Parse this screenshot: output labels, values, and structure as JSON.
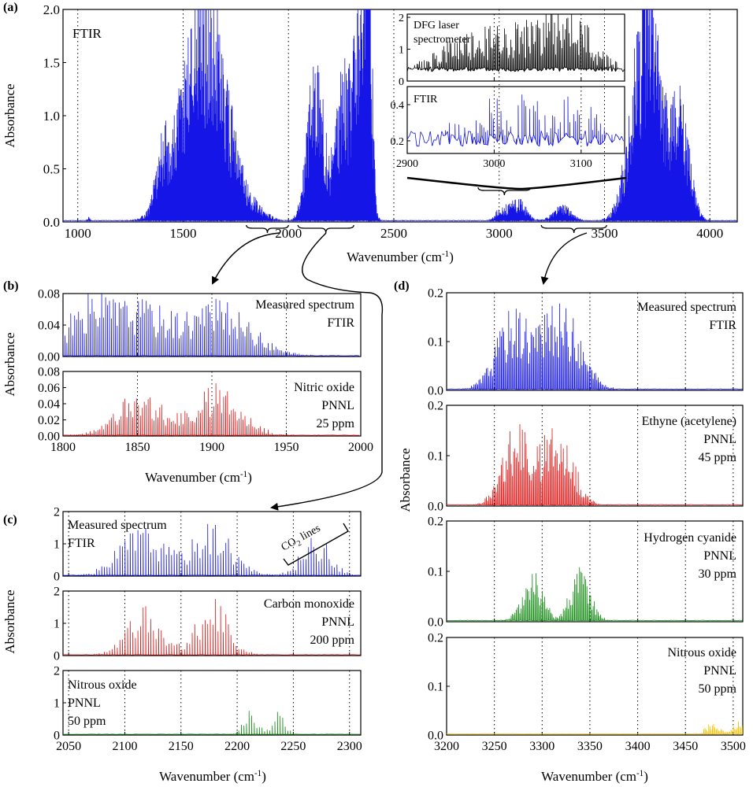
{
  "colors": {
    "blue": "#1515e8",
    "red": "#e01414",
    "green": "#128a12",
    "yellow": "#f2c200",
    "black": "#000000"
  },
  "chart_data": [
    {
      "id": "a",
      "type": "line",
      "panel_label": "(a)",
      "annotation": "FTIR",
      "xlabel": "Wavenumber (cm",
      "xlabel_sup": "-1",
      "xlabel_tail": ")",
      "ylabel": "Absorbance",
      "xlim": [
        930,
        4130
      ],
      "ylim": [
        0,
        2
      ],
      "xticks": [
        1000,
        1500,
        2000,
        2500,
        3000,
        3500,
        4000
      ],
      "yticks": [
        0,
        0.5,
        1,
        1.5,
        2
      ],
      "ytick_labels": [
        "0.0",
        "0.5",
        "1.0",
        "1.5",
        "2.0"
      ],
      "series": [
        {
          "name": "FTIR",
          "color": "blue",
          "bands": [
            {
              "c": 1050,
              "w": 10,
              "amp": 0.04
            },
            {
              "c": 1400,
              "w": 40,
              "amp": 0.5
            },
            {
              "c": 1600,
              "w": 150,
              "amp": 2.4
            },
            {
              "c": 1870,
              "w": 60,
              "amp": 0.06
            },
            {
              "c": 2130,
              "w": 55,
              "amp": 1.65
            },
            {
              "c": 2260,
              "w": 50,
              "amp": 1.5
            },
            {
              "c": 2345,
              "w": 40,
              "amp": 3
            },
            {
              "c": 2380,
              "w": 20,
              "amp": 3
            },
            {
              "c": 3010,
              "w": 40,
              "amp": 0.12
            },
            {
              "c": 3090,
              "w": 55,
              "amp": 0.22
            },
            {
              "c": 3300,
              "w": 60,
              "amp": 0.16
            },
            {
              "c": 3700,
              "w": 95,
              "amp": 2.4
            },
            {
              "c": 3860,
              "w": 60,
              "amp": 1.2
            }
          ]
        }
      ]
    },
    {
      "id": "inset",
      "type": "line",
      "top": {
        "label": "DFG laser\nspectrometer",
        "ylim": [
          0,
          2.1
        ],
        "yticks": [
          0,
          1,
          2
        ],
        "ytick_labels": [
          "0",
          "1",
          "2"
        ],
        "color": "black"
      },
      "bottom": {
        "label": "FTIR",
        "ylim": [
          0.13,
          0.5
        ],
        "yticks": [
          0.2,
          0.4
        ],
        "ytick_labels": [
          "0.2",
          "0.4"
        ],
        "color": "blue"
      },
      "xlim": [
        2900,
        3150
      ],
      "xticks": [
        2900,
        3000,
        3100
      ],
      "xtick_labels": [
        "2900",
        "3000",
        "3100"
      ]
    },
    {
      "id": "b",
      "type": "line",
      "panel_label": "(b)",
      "xlabel": "Wavenumber (cm",
      "xlabel_sup": "-1",
      "xlabel_tail": ")",
      "ylabel": "Absorbance",
      "xlim": [
        1800,
        2000
      ],
      "xticks": [
        1800,
        1850,
        1900,
        1950,
        2000
      ],
      "subplots": [
        {
          "label": "Measured spectrum\nFTIR",
          "color": "blue",
          "ylim": [
            0,
            0.08
          ],
          "yticks": [
            0,
            0.04,
            0.08
          ],
          "ytick_labels": [
            "0.00",
            "0.04",
            "0.08"
          ],
          "bands": [
            {
              "c": 1850,
              "w": 30,
              "amp": 0.07
            },
            {
              "c": 1905,
              "w": 30,
              "amp": 0.07
            },
            {
              "c": 1815,
              "w": 20,
              "amp": 0.06
            }
          ]
        },
        {
          "label": "Nitric oxide\nPNNL\n25 ppm",
          "color": "red",
          "ylim": [
            0,
            0.08
          ],
          "yticks": [
            0,
            0.02,
            0.04,
            0.06,
            0.08
          ],
          "ytick_labels": [
            "0.00",
            "0.02",
            "0.04",
            "0.06",
            "0.08"
          ],
          "bands": [
            {
              "c": 1852,
              "w": 22,
              "amp": 0.058
            },
            {
              "c": 1905,
              "w": 22,
              "amp": 0.066
            }
          ]
        }
      ]
    },
    {
      "id": "c",
      "type": "line",
      "panel_label": "(c)",
      "xlabel": "Wavenumber (cm",
      "xlabel_sup": "-1",
      "xlabel_tail": ")",
      "ylabel": "Absorbance",
      "xlim": [
        2045,
        2310
      ],
      "xticks": [
        2050,
        2100,
        2150,
        2200,
        2250,
        2300
      ],
      "annotation": {
        "text": "CO",
        "sub": "2",
        "tail": " lines"
      },
      "subplots": [
        {
          "label": "Measured spectrum\nFTIR",
          "color": "blue",
          "ylim": [
            0,
            2
          ],
          "yticks": [
            0,
            1,
            2
          ],
          "ytick_labels": [
            "0",
            "1",
            "2"
          ],
          "bands": [
            {
              "c": 2115,
              "w": 28,
              "amp": 1.6
            },
            {
              "c": 2178,
              "w": 25,
              "amp": 1.75
            },
            {
              "c": 2270,
              "w": 18,
              "amp": 1.3
            }
          ]
        },
        {
          "label": "Carbon monoxide\nPNNL\n200 ppm",
          "color": "red",
          "ylim": [
            0,
            2
          ],
          "yticks": [
            0,
            1,
            2
          ],
          "ytick_labels": [
            "0",
            "1",
            "2"
          ],
          "bands": [
            {
              "c": 2117,
              "w": 22,
              "amp": 1.55
            },
            {
              "c": 2178,
              "w": 20,
              "amp": 1.85
            }
          ]
        },
        {
          "label": "Nitrous oxide\nPNNL\n50 ppm",
          "color": "green",
          "ylim": [
            0,
            2
          ],
          "yticks": [
            0,
            1,
            2
          ],
          "ytick_labels": [
            "0",
            "1",
            "2"
          ],
          "bands": [
            {
              "c": 2212,
              "w": 9,
              "amp": 0.75
            },
            {
              "c": 2238,
              "w": 8,
              "amp": 0.75
            }
          ]
        }
      ]
    },
    {
      "id": "d",
      "type": "line",
      "panel_label": "(d)",
      "xlabel": "Wavenumber (cm",
      "xlabel_sup": "-1",
      "xlabel_tail": ")",
      "ylabel": "Absorbance",
      "xlim": [
        3200,
        3510
      ],
      "xticks": [
        3200,
        3250,
        3300,
        3350,
        3400,
        3450,
        3500
      ],
      "subplots": [
        {
          "label": "Measured spectrum\nFTIR",
          "color": "blue",
          "ylim": [
            0,
            0.2
          ],
          "yticks": [
            0,
            0.1,
            0.2
          ],
          "ytick_labels": [
            "0.0",
            "0.1",
            "0.2"
          ],
          "bands": [
            {
              "c": 3270,
              "w": 25,
              "amp": 0.17
            },
            {
              "c": 3320,
              "w": 28,
              "amp": 0.18
            }
          ]
        },
        {
          "label": "Ethyne (acetylene)\nPNNL\n45 ppm",
          "color": "red",
          "ylim": [
            0,
            0.2
          ],
          "yticks": [
            0,
            0.1,
            0.2
          ],
          "ytick_labels": [
            "0.0",
            "0.1",
            "0.2"
          ],
          "bands": [
            {
              "c": 3272,
              "w": 20,
              "amp": 0.17
            },
            {
              "c": 3316,
              "w": 22,
              "amp": 0.18
            }
          ]
        },
        {
          "label": "Hydrogen cyanide\nPNNL\n30 ppm",
          "color": "green",
          "ylim": [
            0,
            0.2
          ],
          "yticks": [
            0,
            0.1,
            0.2
          ],
          "ytick_labels": [
            "0.0",
            "0.1",
            "0.2"
          ],
          "bands": [
            {
              "c": 3290,
              "w": 15,
              "amp": 0.1
            },
            {
              "c": 3340,
              "w": 15,
              "amp": 0.11
            }
          ]
        },
        {
          "label": "Nitrous oxide\nPNNL\n50 ppm",
          "color": "yellow",
          "ylim": [
            0,
            0.2
          ],
          "yticks": [
            0,
            0.1,
            0.2
          ],
          "ytick_labels": [
            "0.0",
            "0.1",
            "0.2"
          ],
          "bands": [
            {
              "c": 3478,
              "w": 10,
              "amp": 0.025
            },
            {
              "c": 3505,
              "w": 8,
              "amp": 0.028
            }
          ]
        }
      ]
    }
  ]
}
